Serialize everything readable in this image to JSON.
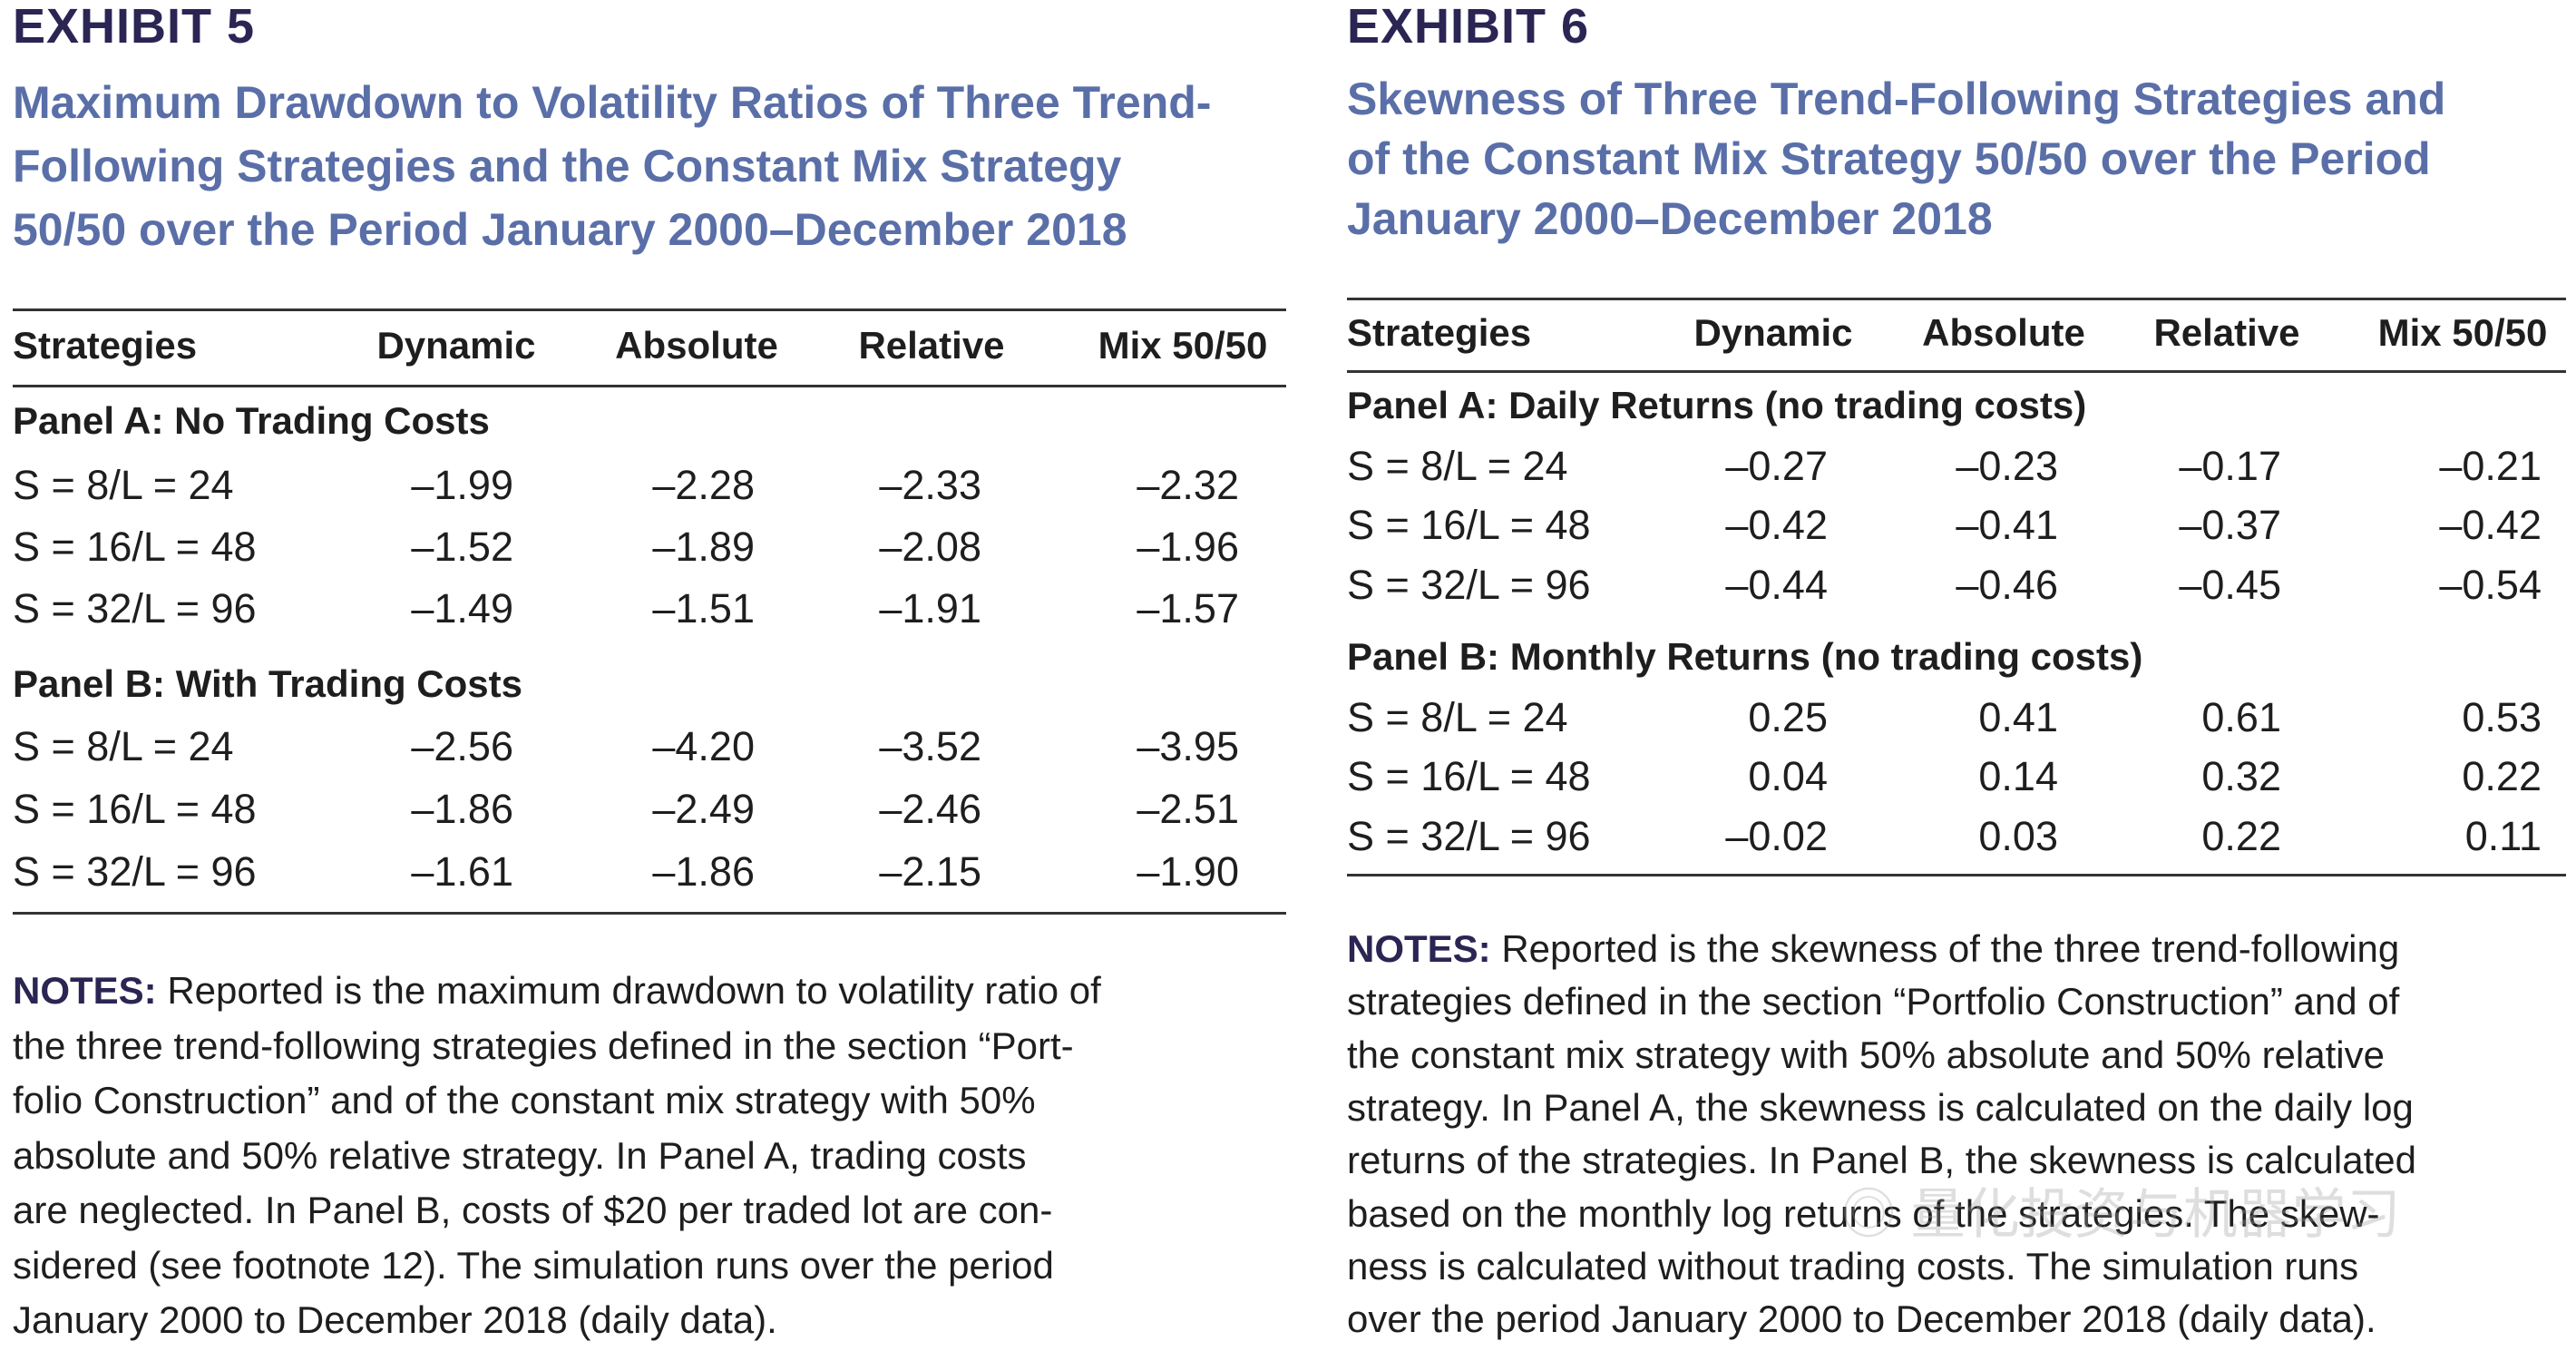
{
  "exhibit5": {
    "label": "EXHIBIT 5",
    "title_lines": [
      "Maximum Drawdown to Volatility Ratios of Three Trend-",
      "Following Strategies and the Constant Mix Strategy",
      "50/50 over the Period January 2000–December 2018"
    ],
    "columns": [
      "Strategies",
      "Dynamic",
      "Absolute",
      "Relative",
      "Mix 50/50"
    ],
    "panels": [
      {
        "title": "Panel A: No Trading Costs",
        "rows": [
          [
            "S = 8/L = 24",
            "–1.99",
            "–2.28",
            "–2.33",
            "–2.32"
          ],
          [
            "S = 16/L = 48",
            "–1.52",
            "–1.89",
            "–2.08",
            "–1.96"
          ],
          [
            "S = 32/L = 96",
            "–1.49",
            "–1.51",
            "–1.91",
            "–1.57"
          ]
        ]
      },
      {
        "title": "Panel B: With Trading Costs",
        "rows": [
          [
            "S = 8/L = 24",
            "–2.56",
            "–4.20",
            "–3.52",
            "–3.95"
          ],
          [
            "S = 16/L = 48",
            "–1.86",
            "–2.49",
            "–2.46",
            "–2.51"
          ],
          [
            "S = 32/L = 96",
            "–1.61",
            "–1.86",
            "–2.15",
            "–1.90"
          ]
        ]
      }
    ],
    "notes_label": "NOTES:",
    "notes_lines": [
      " Reported is the maximum drawdown to volatility ratio of",
      "the three trend-following strategies defined in the section “Port-",
      "folio Construction” and of the constant mix strategy with 50%",
      "absolute and 50% relative strategy. In Panel A, trading costs",
      "are neglected. In Panel B, costs of $20 per traded lot are con-",
      "sidered (see footnote 12). The simulation runs over the period",
      "January 2000 to December 2018 (daily data)."
    ]
  },
  "exhibit6": {
    "label": "EXHIBIT 6",
    "title_lines": [
      "Skewness of Three Trend-Following Strategies and",
      "of the Constant Mix Strategy 50/50 over the Period",
      "January 2000–December 2018"
    ],
    "columns": [
      "Strategies",
      "Dynamic",
      "Absolute",
      "Relative",
      "Mix 50/50"
    ],
    "panels": [
      {
        "title": "Panel A: Daily Returns (no trading costs)",
        "rows": [
          [
            "S = 8/L = 24",
            "–0.27",
            "–0.23",
            "–0.17",
            "–0.21"
          ],
          [
            "S = 16/L = 48",
            "–0.42",
            "–0.41",
            "–0.37",
            "–0.42"
          ],
          [
            "S = 32/L = 96",
            "–0.44",
            "–0.46",
            "–0.45",
            "–0.54"
          ]
        ]
      },
      {
        "title": "Panel B: Monthly Returns (no trading costs)",
        "rows": [
          [
            "S = 8/L = 24",
            "0.25",
            "0.41",
            "0.61",
            "0.53"
          ],
          [
            "S = 16/L = 48",
            "0.04",
            "0.14",
            "0.32",
            "0.22"
          ],
          [
            "S = 32/L = 96",
            "–0.02",
            "0.03",
            "0.22",
            "0.11"
          ]
        ]
      }
    ],
    "notes_label": "NOTES:",
    "notes_lines": [
      " Reported is the skewness of the three trend-following",
      "strategies defined in the section “Portfolio Construction” and of",
      "the constant mix strategy with 50% absolute and 50% relative",
      "strategy. In Panel A, the skewness is calculated on the daily log",
      "returns of the strategies. In Panel B, the skewness is calculated",
      "based on the monthly log returns of the strategies. The skew-",
      "ness is calculated without trading costs. The simulation runs",
      "over the period January 2000 to December 2018 (daily data)."
    ]
  },
  "watermark": "量化投资与机器学习",
  "colors": {
    "exhibit_label": "#2a2553",
    "title": "#5a6fa8",
    "text": "#1e1e1e"
  }
}
